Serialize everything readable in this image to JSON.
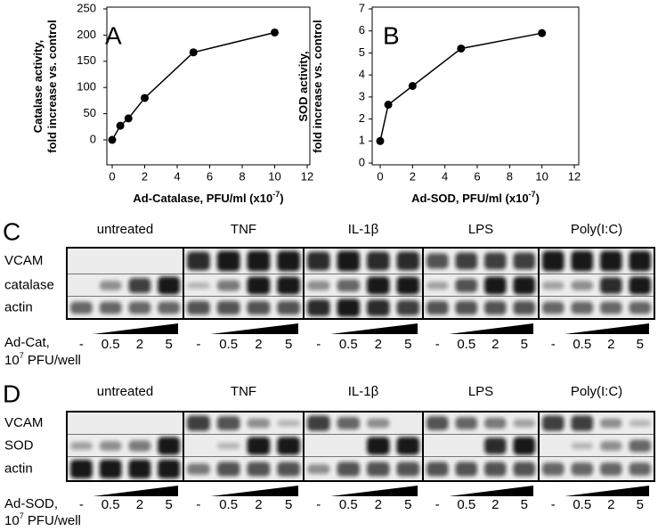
{
  "chart_data": [
    {
      "type": "line",
      "panel": "A",
      "ylabel": [
        "Catalase activity,",
        "fold increase vs. control"
      ],
      "xlabel": "Ad-Catalase, PFU/ml (x10",
      "xlabel_exp": "-7",
      "xlabel_end": ")",
      "x": [
        0,
        0.5,
        1,
        2,
        5,
        10
      ],
      "values": [
        0,
        27,
        41,
        80,
        167,
        205
      ],
      "color": "#000000",
      "xlim": [
        0,
        12
      ],
      "xticks": [
        0,
        2,
        4,
        6,
        8,
        10,
        12
      ],
      "ylim": [
        0,
        250
      ],
      "yticks": [
        0,
        50,
        100,
        150,
        200,
        250
      ]
    },
    {
      "type": "line",
      "panel": "B",
      "ylabel": [
        "SOD activity,",
        "fold increase vs. control"
      ],
      "xlabel": "Ad-SOD, PFU/ml (x10",
      "xlabel_exp": "-7",
      "xlabel_end": ")",
      "x": [
        0,
        0.5,
        2,
        5,
        10
      ],
      "values": [
        1,
        2.65,
        3.5,
        5.2,
        5.9
      ],
      "color": "#000000",
      "xlim": [
        0,
        12
      ],
      "xticks": [
        0,
        2,
        4,
        6,
        8,
        10,
        12
      ],
      "ylim": [
        0,
        7
      ],
      "yticks": [
        0,
        1,
        2,
        3,
        4,
        5,
        6,
        7
      ]
    }
  ],
  "blots": [
    {
      "panel": "C",
      "groups": [
        "untreated",
        "TNF",
        "IL-1β",
        "LPS",
        "Poly(I:C)"
      ],
      "rows": [
        "VCAM",
        "catalase",
        "actin"
      ],
      "treatment": "Ad-Cat,",
      "unit_base": "10",
      "unit_exp": "7",
      "unit": " PFU/well",
      "doses": [
        "-",
        "0.5",
        "2",
        "5"
      ]
    },
    {
      "panel": "D",
      "groups": [
        "untreated",
        "TNF",
        "IL-1β",
        "LPS",
        "Poly(I:C)"
      ],
      "rows": [
        "VCAM",
        "SOD",
        "actin"
      ],
      "treatment": "Ad-SOD,",
      "unit_base": "10",
      "unit_exp": "7",
      "unit": " PFU/well",
      "doses": [
        "-",
        "0.5",
        "2",
        "5"
      ]
    }
  ]
}
